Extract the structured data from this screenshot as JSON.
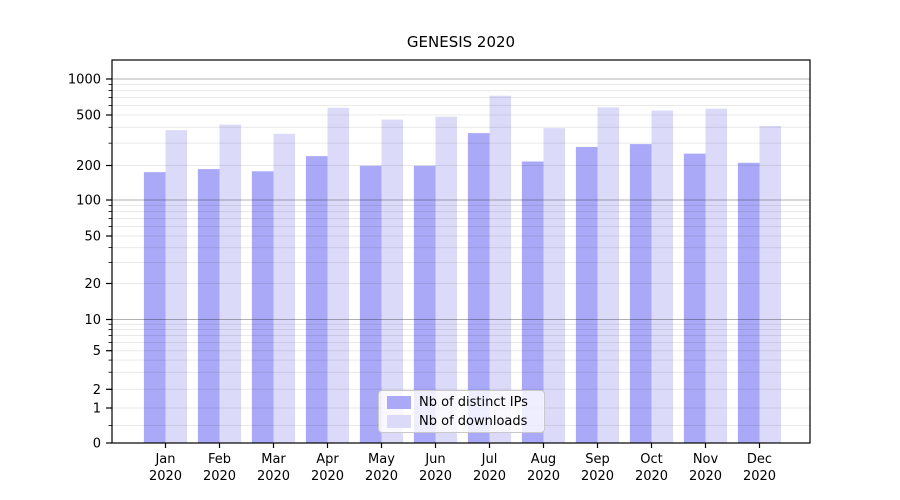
{
  "title": "GENESIS 2020",
  "legend": {
    "items": [
      {
        "label": "Nb of distinct IPs",
        "color": "#a9a9f7"
      },
      {
        "label": "Nb of downloads",
        "color": "#dbdbf9"
      }
    ]
  },
  "chart_data": {
    "type": "bar",
    "title": "GENESIS 2020",
    "categories": [
      "Jan",
      "Feb",
      "Mar",
      "Apr",
      "May",
      "Jun",
      "Jul",
      "Aug",
      "Sep",
      "Oct",
      "Nov",
      "Dec"
    ],
    "category_second_line": "2020",
    "series": [
      {
        "name": "Nb of distinct IPs",
        "color": "#a9a9f7",
        "values": [
          175,
          186,
          178,
          237,
          199,
          199,
          360,
          215,
          280,
          295,
          248,
          210
        ]
      },
      {
        "name": "Nb of downloads",
        "color": "#dbdbf9",
        "values": [
          380,
          420,
          355,
          575,
          460,
          485,
          725,
          394,
          580,
          545,
          565,
          410
        ]
      }
    ],
    "yscale": "symlog",
    "ytick_values": [
      0,
      1,
      2,
      5,
      10,
      20,
      50,
      100,
      200,
      500,
      1000
    ],
    "ytick_labels": [
      "0",
      "1",
      "2",
      "5",
      "10",
      "20",
      "50",
      "100",
      "200",
      "500",
      "1000"
    ],
    "ylim": [
      0,
      1400
    ],
    "grid": true,
    "legend_position": "lower center",
    "xlabel": "",
    "ylabel": ""
  }
}
